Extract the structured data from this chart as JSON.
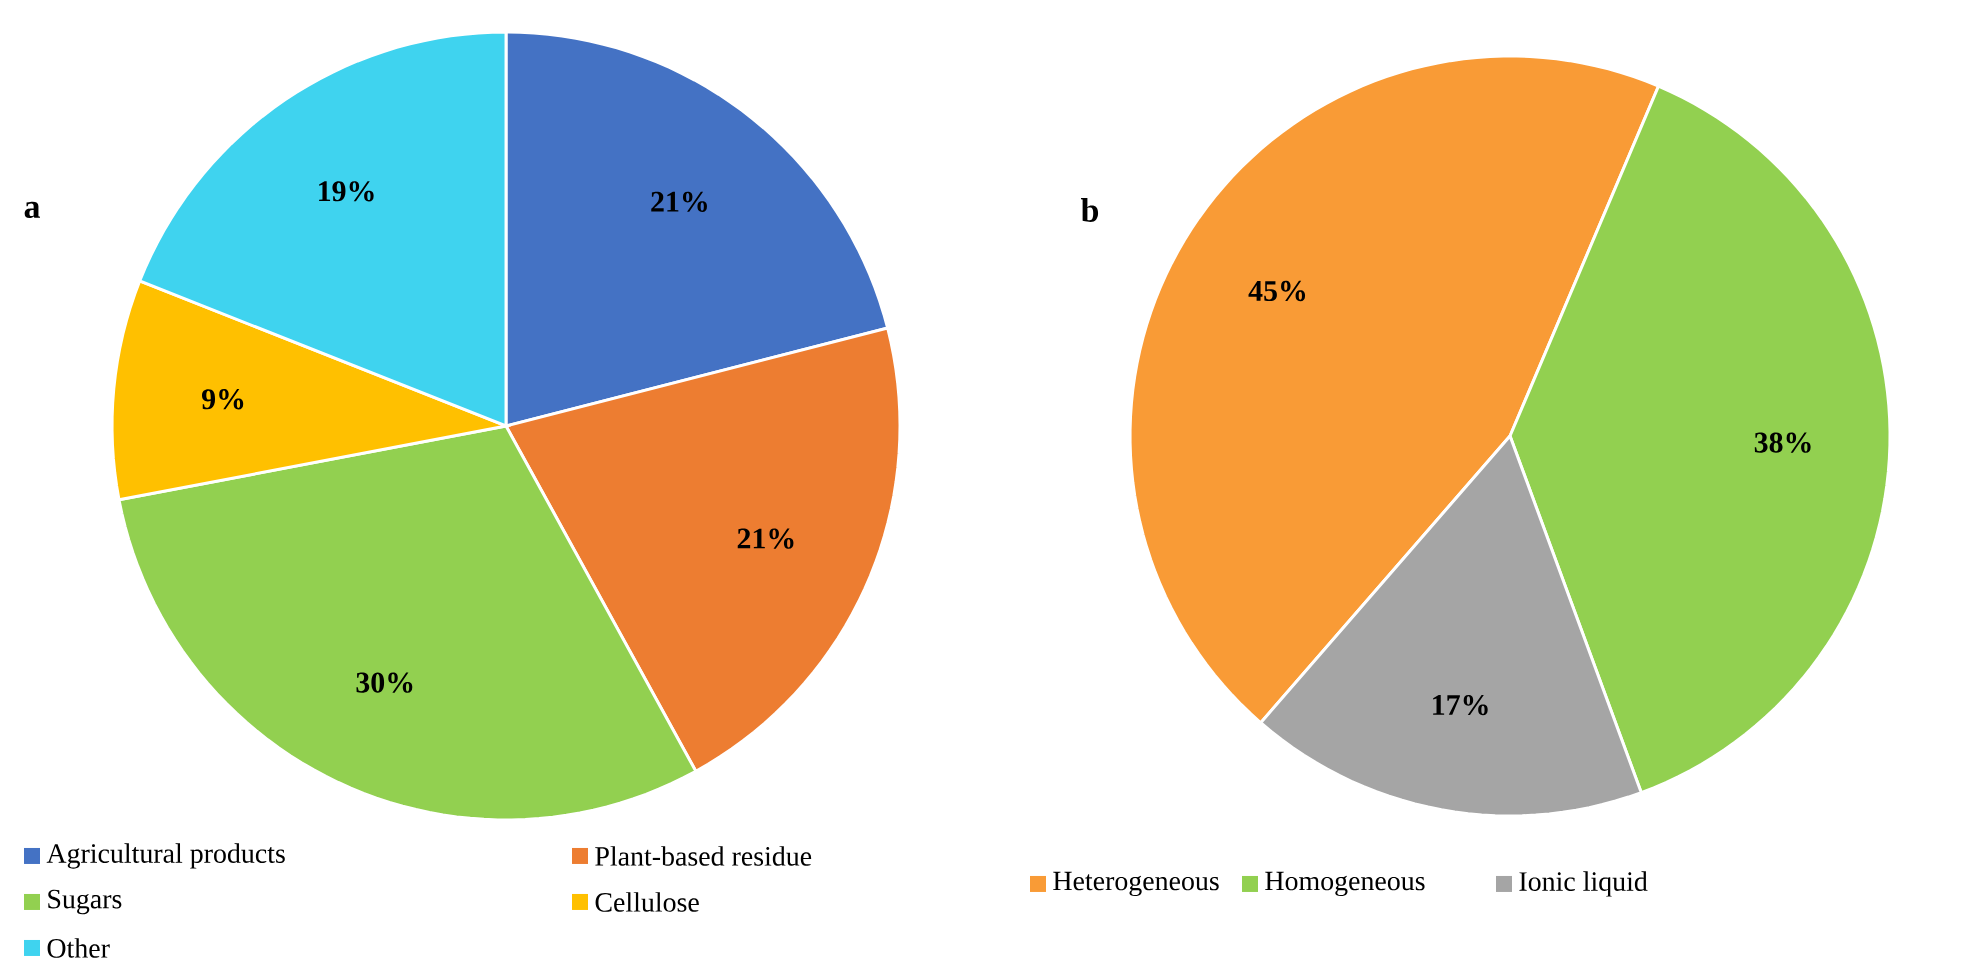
{
  "chart_data": [
    {
      "type": "pie",
      "title": "a",
      "categories": [
        "Agricultural products",
        "Plant-based residue",
        "Sugars",
        "Cellulose",
        "Other"
      ],
      "values": [
        21,
        21,
        30,
        9,
        19
      ],
      "colors": [
        "#4472c4",
        "#ed7d31",
        "#92d050",
        "#ffc000",
        "#3fd3ef"
      ],
      "value_labels": [
        "21%",
        "21%",
        "30%",
        "9%",
        "19%"
      ],
      "legend": "bottom"
    },
    {
      "type": "pie",
      "title": "b",
      "categories": [
        "Heterogeneous",
        "Homogeneous",
        "Ionic liquid"
      ],
      "values": [
        45,
        38,
        17
      ],
      "colors": [
        "#f99b36",
        "#92d050",
        "#a5a5a5"
      ],
      "value_labels": [
        "45%",
        "38%",
        "17%"
      ],
      "legend": "bottom"
    }
  ]
}
